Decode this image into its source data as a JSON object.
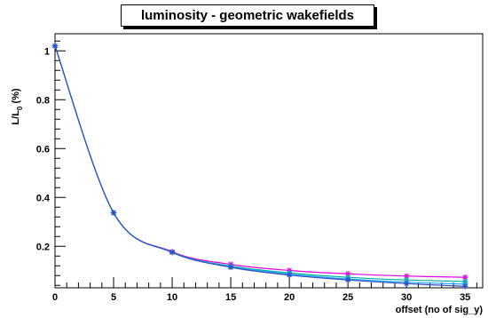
{
  "chart_data": {
    "type": "line",
    "title": "luminosity - geometric wakefields",
    "xlabel": "offset (no of sig_y)",
    "ylabel": "L/L",
    "ylabel_sub": "0",
    "ylabel_suffix": " (%)",
    "xlim": [
      0,
      36.5
    ],
    "ylim": [
      0.03,
      1.07
    ],
    "xticks": [
      0,
      5,
      10,
      15,
      20,
      25,
      30,
      35
    ],
    "yticks": [
      0.2,
      0.4,
      0.6,
      0.8,
      1
    ],
    "yticklabels": [
      "0.2",
      "0.4",
      "0.6",
      "0.8",
      "1"
    ],
    "x": [
      0,
      5,
      10,
      15,
      20,
      25,
      30,
      35
    ],
    "series": [
      {
        "color": "#e000e0",
        "values": [
          1.02,
          0.337,
          0.178,
          0.126,
          0.101,
          0.087,
          0.078,
          0.073
        ]
      },
      {
        "color": "#00b0a0",
        "values": [
          1.02,
          0.337,
          0.176,
          0.119,
          0.091,
          0.073,
          0.062,
          0.056
        ]
      },
      {
        "color": "#20a0ff",
        "values": [
          1.02,
          0.337,
          0.175,
          0.116,
          0.086,
          0.066,
          0.053,
          0.045
        ]
      },
      {
        "color": "#3050c0",
        "values": [
          1.02,
          0.337,
          0.175,
          0.114,
          0.082,
          0.062,
          0.047,
          0.036
        ]
      }
    ],
    "grid": false,
    "legend": "none"
  }
}
